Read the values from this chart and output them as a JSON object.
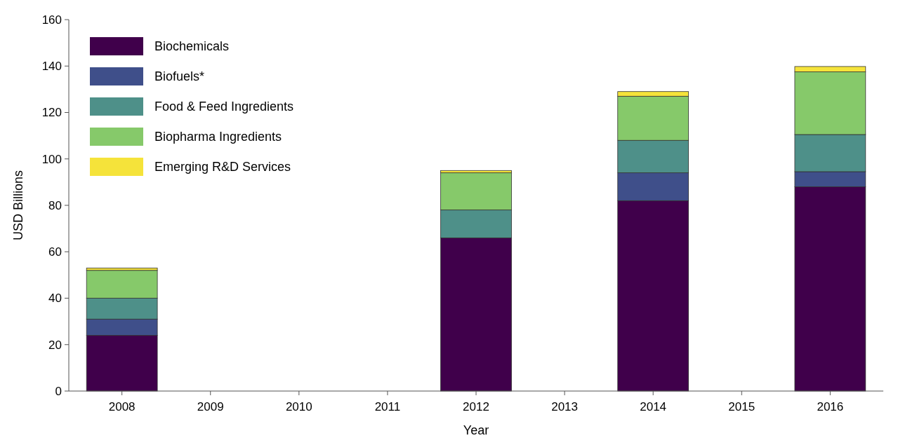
{
  "chart_data": {
    "type": "bar",
    "stacked": true,
    "xlabel": "Year",
    "ylabel": "USD Billions",
    "categories": [
      "2008",
      "2009",
      "2010",
      "2011",
      "2012",
      "2013",
      "2014",
      "2015",
      "2016"
    ],
    "series": [
      {
        "name": "Biochemicals",
        "color": "#40004b",
        "values": [
          24,
          null,
          null,
          null,
          66,
          null,
          82,
          null,
          88
        ]
      },
      {
        "name": "Biofuels*",
        "color": "#3f4f8a",
        "values": [
          7,
          null,
          null,
          null,
          0,
          null,
          12,
          null,
          6.5
        ]
      },
      {
        "name": "Food & Feed Ingredients",
        "color": "#4e9089",
        "values": [
          9,
          null,
          null,
          null,
          12,
          null,
          14,
          null,
          16
        ]
      },
      {
        "name": "Biopharma Ingredients",
        "color": "#86c96a",
        "values": [
          12,
          null,
          null,
          null,
          16,
          null,
          19,
          null,
          27
        ]
      },
      {
        "name": "Emerging R&D Services",
        "color": "#f5e33a",
        "values": [
          1,
          null,
          null,
          null,
          1,
          null,
          2,
          null,
          2.3
        ]
      }
    ],
    "ylim": [
      0,
      160
    ],
    "yticks": [
      0,
      20,
      40,
      60,
      80,
      100,
      120,
      140,
      160
    ],
    "grid": false,
    "legend": "top left"
  }
}
